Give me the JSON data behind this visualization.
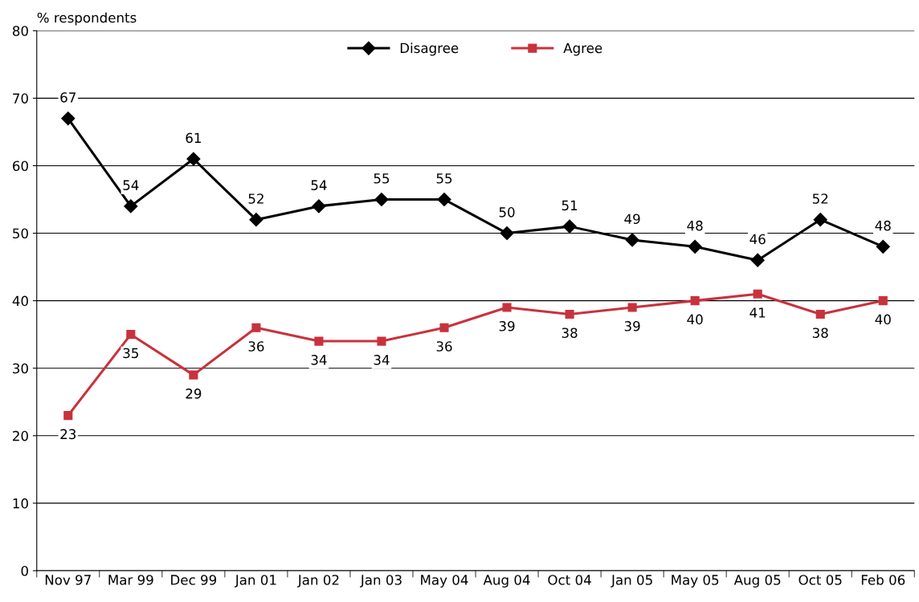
{
  "chart_data": {
    "type": "line",
    "ylabel": "% respondents",
    "categories": [
      "Nov 97",
      "Mar 99",
      "Dec 99",
      "Jan 01",
      "Jan 02",
      "Jan 03",
      "May 04",
      "Aug 04",
      "Oct 04",
      "Jan 05",
      "May 05",
      "Aug 05",
      "Oct 05",
      "Feb 06"
    ],
    "series": [
      {
        "name": "Disagree",
        "color": "#000000",
        "marker": "diamond",
        "values": [
          67,
          54,
          61,
          52,
          54,
          55,
          55,
          50,
          51,
          49,
          48,
          46,
          52,
          48
        ]
      },
      {
        "name": "Agree",
        "color": "#c8323c",
        "marker": "square",
        "values": [
          23,
          35,
          29,
          36,
          34,
          34,
          36,
          39,
          38,
          39,
          40,
          41,
          38,
          40
        ]
      }
    ],
    "ylim": [
      0,
      80
    ],
    "yticks": [
      0,
      10,
      20,
      30,
      40,
      50,
      60,
      70,
      80
    ],
    "grid": "y",
    "legend": "top",
    "data_labels": true,
    "line_style": "solid"
  }
}
